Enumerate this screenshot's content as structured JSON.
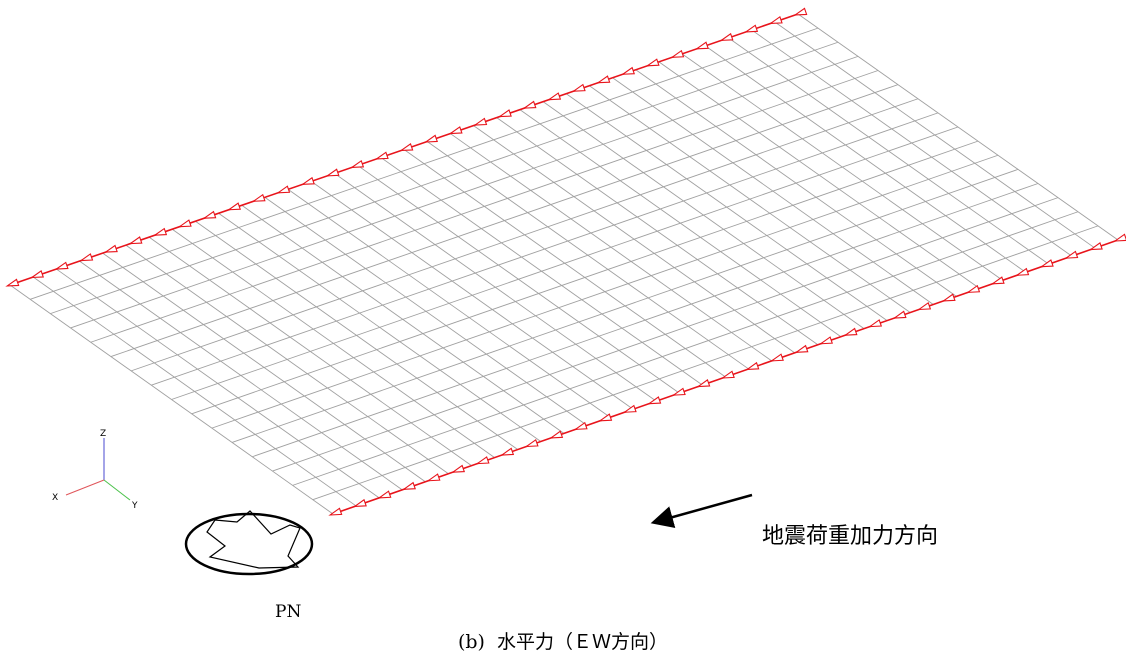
{
  "diagram": {
    "mesh": {
      "divisions_long": 34,
      "divisions_short": 16,
      "line_color": "#a0a0a0"
    },
    "load_edges": {
      "color": "#e8141b",
      "arrow_direction": "negative-x",
      "arrows_per_edge": 32
    },
    "axes": {
      "z_label": "Z",
      "x_label": "X",
      "y_label": "Y",
      "z_color": "#4a4ad0",
      "x_color": "#e0555a",
      "y_color": "#4cc24c"
    },
    "load_direction": {
      "label": "地震荷重加力方向"
    },
    "plan_symbol": {
      "label": "PN",
      "icon": "plan-north-icon"
    },
    "caption": "(b)  水平力（ＥＷ方向）"
  }
}
